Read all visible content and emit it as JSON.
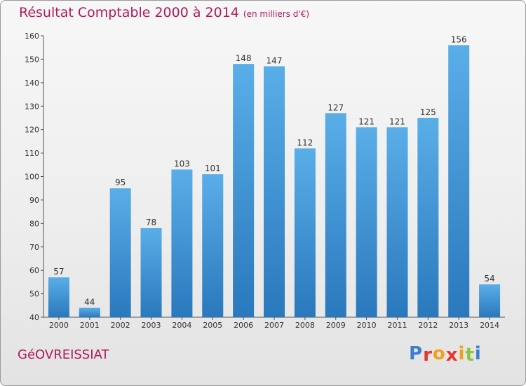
{
  "header": {
    "title": "Résultat Comptable 2000 à 2014",
    "subtitle": "(en milliers d'€)"
  },
  "footer": {
    "commune": "GéOVREISSIAT",
    "logo": {
      "letters": [
        "P",
        "r",
        "o",
        "x",
        "i",
        "t",
        "i"
      ],
      "colors": [
        "#3a7fd0",
        "#e8342e",
        "#f2a01b",
        "#e8342e",
        "#f2a01b",
        "#8cc33f",
        "#3a7fd0"
      ]
    }
  },
  "colors": {
    "title": "#b0195c",
    "bar_top": "#5aaee8",
    "bar_bottom": "#2a78bd"
  },
  "chart_data": {
    "type": "bar",
    "categories": [
      "2000",
      "2001",
      "2002",
      "2003",
      "2004",
      "2005",
      "2006",
      "2007",
      "2008",
      "2009",
      "2010",
      "2011",
      "2012",
      "2013",
      "2014"
    ],
    "values": [
      57,
      44,
      95,
      78,
      103,
      101,
      148,
      147,
      112,
      127,
      121,
      121,
      125,
      156,
      54
    ],
    "ylim": [
      40,
      160
    ],
    "yticks": [
      40,
      50,
      60,
      70,
      80,
      90,
      100,
      110,
      120,
      130,
      140,
      150,
      160
    ],
    "grid": false,
    "data_labels": true
  }
}
